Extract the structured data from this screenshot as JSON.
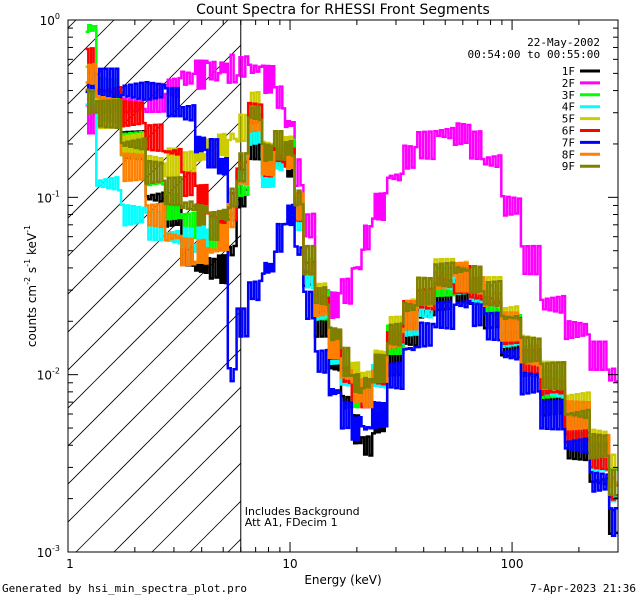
{
  "chart_data": {
    "type": "line",
    "title": "Count Spectra for RHESSI Front Segments",
    "xlabel": "Energy (keV)",
    "ylabel_parts": [
      "counts cm",
      "-2",
      " s",
      "-1",
      " keV",
      "-1"
    ],
    "xscale": "log",
    "yscale": "log",
    "xlim": [
      1,
      300
    ],
    "ylim": [
      0.001,
      1
    ],
    "x_ticks": [
      {
        "value": 10,
        "label": "10"
      },
      {
        "value": 100,
        "label": "100"
      }
    ],
    "y_ticks": [
      {
        "value": 1,
        "label": "10",
        "exp": "0"
      },
      {
        "value": 0.1,
        "label": "10",
        "exp": "-1"
      },
      {
        "value": 0.01,
        "label": "10",
        "exp": "-2"
      },
      {
        "value": 0.001,
        "label": "10",
        "exp": "-3"
      }
    ],
    "x_axis_label_1": "1",
    "date": "22-May-2002",
    "time_range": "00:54:00 to 00:55:00",
    "annotation_lines": [
      "Includes Background",
      "Att A1, FDecim 1"
    ],
    "hatched_region_xmax": 6,
    "series": [
      {
        "name": "1F",
        "color": "#000000",
        "x": [
          1.2,
          1.5,
          2,
          2.5,
          3,
          3.5,
          4,
          4.5,
          5,
          5.5,
          6,
          7,
          8,
          9,
          10,
          11,
          12,
          14,
          16,
          18,
          20,
          22,
          25,
          30,
          35,
          40,
          50,
          60,
          70,
          80,
          100,
          120,
          150,
          200,
          250,
          300
        ],
        "y": [
          0.4,
          0.35,
          0.2,
          0.1,
          0.08,
          0.05,
          0.04,
          0.04,
          0.04,
          0.05,
          0.1,
          0.2,
          0.14,
          0.17,
          0.16,
          0.08,
          0.035,
          0.02,
          0.012,
          0.007,
          0.005,
          0.004,
          0.005,
          0.012,
          0.017,
          0.022,
          0.028,
          0.03,
          0.026,
          0.022,
          0.015,
          0.01,
          0.007,
          0.004,
          0.0025,
          0.0015
        ]
      },
      {
        "name": "2F",
        "color": "#ff00ff",
        "x": [
          1.2,
          1.5,
          2,
          2.5,
          3,
          3.5,
          4,
          4.5,
          5,
          5.5,
          6,
          7,
          8,
          9,
          10,
          11,
          12,
          14,
          16,
          18,
          20,
          22,
          25,
          30,
          35,
          40,
          50,
          60,
          70,
          80,
          100,
          120,
          150,
          200,
          250,
          300
        ],
        "y": [
          0.28,
          0.3,
          0.33,
          0.37,
          0.42,
          0.47,
          0.5,
          0.52,
          0.54,
          0.54,
          0.55,
          0.53,
          0.47,
          0.37,
          0.26,
          0.14,
          0.07,
          0.03,
          0.025,
          0.03,
          0.04,
          0.06,
          0.09,
          0.13,
          0.17,
          0.2,
          0.23,
          0.23,
          0.2,
          0.16,
          0.09,
          0.045,
          0.025,
          0.018,
          0.013,
          0.01
        ]
      },
      {
        "name": "3F",
        "color": "#00ff00",
        "x": [
          1.2,
          1.5,
          2,
          2.5,
          3,
          3.5,
          4,
          4.5,
          5,
          5.5,
          6,
          7,
          8,
          9,
          10,
          11,
          12,
          14,
          16,
          18,
          20,
          22,
          25,
          30,
          35,
          40,
          50,
          60,
          70,
          80,
          100,
          120,
          150,
          200,
          250,
          300
        ],
        "y": [
          0.9,
          0.4,
          0.2,
          0.12,
          0.09,
          0.07,
          0.06,
          0.06,
          0.06,
          0.08,
          0.12,
          0.25,
          0.15,
          0.17,
          0.18,
          0.09,
          0.04,
          0.025,
          0.015,
          0.01,
          0.008,
          0.008,
          0.01,
          0.016,
          0.022,
          0.027,
          0.034,
          0.036,
          0.032,
          0.027,
          0.019,
          0.013,
          0.009,
          0.006,
          0.004,
          0.0025
        ]
      },
      {
        "name": "4F",
        "color": "#00ffff",
        "x": [
          1.2,
          1.5,
          2,
          2.5,
          3,
          3.5,
          4,
          4.5,
          5,
          5.5,
          6,
          7,
          8,
          9,
          10,
          11,
          12,
          14,
          16,
          18,
          20,
          22,
          25,
          30,
          35,
          40,
          50,
          60,
          70,
          80,
          100,
          120,
          150,
          200,
          250,
          300
        ],
        "y": [
          0.4,
          0.12,
          0.08,
          0.07,
          0.06,
          0.06,
          0.06,
          0.07,
          0.07,
          0.09,
          0.13,
          0.22,
          0.14,
          0.16,
          0.16,
          0.08,
          0.035,
          0.022,
          0.014,
          0.01,
          0.008,
          0.008,
          0.01,
          0.015,
          0.02,
          0.025,
          0.031,
          0.034,
          0.03,
          0.025,
          0.017,
          0.012,
          0.008,
          0.005,
          0.0035,
          0.002
        ]
      },
      {
        "name": "5F",
        "color": "#cccc00",
        "x": [
          1.2,
          1.5,
          2,
          2.5,
          3,
          3.5,
          4,
          4.5,
          5,
          5.5,
          6,
          7,
          8,
          9,
          10,
          11,
          12,
          14,
          16,
          18,
          20,
          22,
          25,
          30,
          35,
          40,
          50,
          60,
          70,
          80,
          100,
          120,
          150,
          200,
          250,
          300
        ],
        "y": [
          0.5,
          0.3,
          0.2,
          0.16,
          0.16,
          0.16,
          0.17,
          0.18,
          0.2,
          0.22,
          0.25,
          0.34,
          0.2,
          0.2,
          0.19,
          0.1,
          0.045,
          0.028,
          0.017,
          0.012,
          0.01,
          0.01,
          0.012,
          0.018,
          0.025,
          0.031,
          0.038,
          0.04,
          0.036,
          0.03,
          0.022,
          0.015,
          0.01,
          0.007,
          0.0045,
          0.003
        ]
      },
      {
        "name": "6F",
        "color": "#ff0000",
        "x": [
          1.2,
          1.5,
          2,
          2.5,
          3,
          3.5,
          4,
          4.5,
          5,
          5.5,
          6,
          7,
          8,
          9,
          10,
          11,
          12,
          14,
          16,
          18,
          20,
          22,
          25,
          30,
          35,
          40,
          50,
          60,
          70,
          80,
          100,
          120,
          150,
          200,
          250,
          300
        ],
        "y": [
          0.6,
          0.4,
          0.3,
          0.22,
          0.18,
          0.12,
          0.1,
          0.08,
          0.07,
          0.09,
          0.15,
          0.3,
          0.16,
          0.17,
          0.17,
          0.09,
          0.04,
          0.025,
          0.015,
          0.01,
          0.008,
          0.008,
          0.01,
          0.016,
          0.022,
          0.027,
          0.033,
          0.035,
          0.031,
          0.026,
          0.018,
          0.012,
          0.008,
          0.005,
          0.0035,
          0.002
        ]
      },
      {
        "name": "7F",
        "color": "#0000ff",
        "x": [
          1.2,
          1.5,
          2,
          2.5,
          3,
          3.5,
          4,
          4.5,
          5,
          5.5,
          6,
          7,
          8,
          9,
          10,
          11,
          12,
          14,
          16,
          18,
          20,
          22,
          25,
          30,
          35,
          40,
          50,
          60,
          70,
          80,
          100,
          120,
          150,
          200,
          250,
          300
        ],
        "y": [
          0.45,
          0.45,
          0.4,
          0.4,
          0.35,
          0.3,
          0.2,
          0.18,
          0.15,
          0.01,
          0.02,
          0.03,
          0.04,
          0.06,
          0.08,
          0.05,
          0.025,
          0.012,
          0.008,
          0.006,
          0.005,
          0.005,
          0.006,
          0.01,
          0.014,
          0.017,
          0.022,
          0.025,
          0.022,
          0.019,
          0.013,
          0.009,
          0.006,
          0.004,
          0.0025,
          0.0015
        ]
      },
      {
        "name": "8F",
        "color": "#ff8000",
        "x": [
          1.2,
          1.5,
          2,
          2.5,
          3,
          3.5,
          4,
          4.5,
          5,
          5.5,
          6,
          7,
          8,
          9,
          10,
          11,
          12,
          14,
          16,
          18,
          20,
          22,
          25,
          30,
          35,
          40,
          50,
          60,
          70,
          80,
          100,
          120,
          150,
          200,
          250,
          300
        ],
        "y": [
          0.5,
          0.35,
          0.15,
          0.08,
          0.06,
          0.05,
          0.05,
          0.05,
          0.06,
          0.08,
          0.12,
          0.28,
          0.16,
          0.18,
          0.17,
          0.09,
          0.04,
          0.025,
          0.015,
          0.01,
          0.008,
          0.008,
          0.01,
          0.016,
          0.022,
          0.027,
          0.034,
          0.036,
          0.032,
          0.027,
          0.019,
          0.013,
          0.009,
          0.006,
          0.004,
          0.0025
        ]
      },
      {
        "name": "9F",
        "color": "#808000",
        "x": [
          1.2,
          1.5,
          2,
          2.5,
          3,
          3.5,
          4,
          4.5,
          5,
          5.5,
          6,
          7,
          8,
          9,
          10,
          11,
          12,
          14,
          16,
          18,
          20,
          22,
          25,
          30,
          35,
          40,
          50,
          60,
          70,
          80,
          100,
          120,
          150,
          200,
          250,
          300
        ],
        "y": [
          0.35,
          0.3,
          0.2,
          0.14,
          0.11,
          0.09,
          0.08,
          0.07,
          0.08,
          0.1,
          0.15,
          0.3,
          0.18,
          0.2,
          0.19,
          0.1,
          0.045,
          0.028,
          0.017,
          0.012,
          0.009,
          0.009,
          0.011,
          0.017,
          0.024,
          0.03,
          0.037,
          0.039,
          0.035,
          0.029,
          0.021,
          0.014,
          0.01,
          0.006,
          0.004,
          0.0025
        ]
      }
    ]
  },
  "footer": {
    "generated_by": "Generated by hsi_min_spectra_plot.pro",
    "timestamp": "7-Apr-2023 21:36"
  }
}
